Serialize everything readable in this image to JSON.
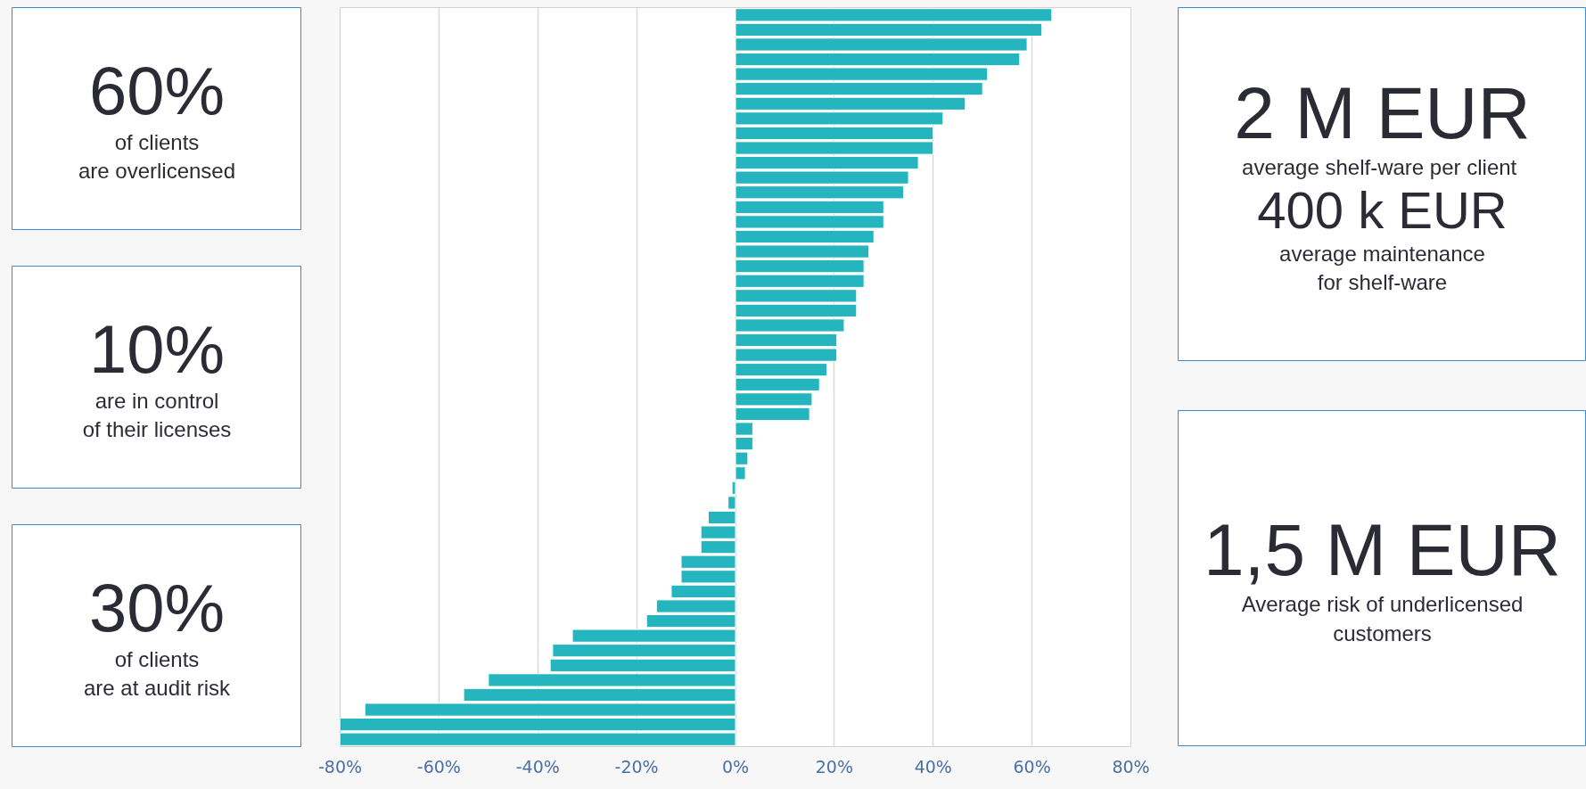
{
  "chart_data": [
    {
      "type": "other",
      "title": "60%",
      "subtitle": "of clients\nare overlicensed"
    },
    {
      "type": "other",
      "title": "10%",
      "subtitle": "are in control\nof their licenses"
    },
    {
      "type": "other",
      "title": "30%",
      "subtitle": "of clients\nare at audit risk"
    },
    {
      "type": "bar",
      "orientation": "horizontal",
      "color": "#24b5be",
      "grid": "x",
      "tick_labels": "x",
      "categories": [
        null,
        null,
        null,
        null,
        null,
        null,
        null,
        null,
        null,
        null,
        null,
        null,
        null,
        null,
        null,
        null,
        null,
        null,
        null,
        null,
        null,
        null,
        null,
        null,
        null,
        null,
        null,
        null,
        null,
        null,
        null,
        null,
        null,
        null,
        null,
        null,
        null,
        null,
        null,
        null,
        null,
        null,
        null,
        null,
        null,
        null,
        null,
        null,
        null,
        null
      ],
      "values": [
        64,
        62,
        59,
        57.5,
        51,
        50,
        46.5,
        42,
        40,
        40,
        37,
        35,
        34,
        30,
        30,
        28,
        27,
        26,
        26,
        24.5,
        24.5,
        22,
        20.5,
        20.5,
        18.5,
        17,
        15.5,
        15,
        3.5,
        3.5,
        2.5,
        2,
        -0.7,
        -1.5,
        -5.5,
        -7,
        -7,
        -11,
        -11,
        -13,
        -16,
        -18,
        -33,
        -37,
        -37.5,
        -50,
        -55,
        -75,
        -80,
        -80
      ],
      "xlim": [
        -80,
        80
      ],
      "xticks": [
        {
          "value": -80,
          "label": "-80%"
        },
        {
          "value": -60,
          "label": "-60%"
        },
        {
          "value": -40,
          "label": "-40%"
        },
        {
          "value": -20,
          "label": "-20%"
        },
        {
          "value": 0,
          "label": "0%"
        },
        {
          "value": 20,
          "label": "20%"
        },
        {
          "value": 40,
          "label": "40%"
        },
        {
          "value": 60,
          "label": "60%"
        },
        {
          "value": 80,
          "label": "80%"
        }
      ]
    },
    {
      "type": "other",
      "title": "2 M EUR",
      "subtitle": "average shelf-ware  per client",
      "annotations": [
        "400 k EUR",
        "average maintenance\nfor shelf-ware"
      ]
    },
    {
      "type": "other",
      "title": "1,5 M EUR",
      "subtitle": "Average risk of underlicensed\ncustomers"
    }
  ]
}
